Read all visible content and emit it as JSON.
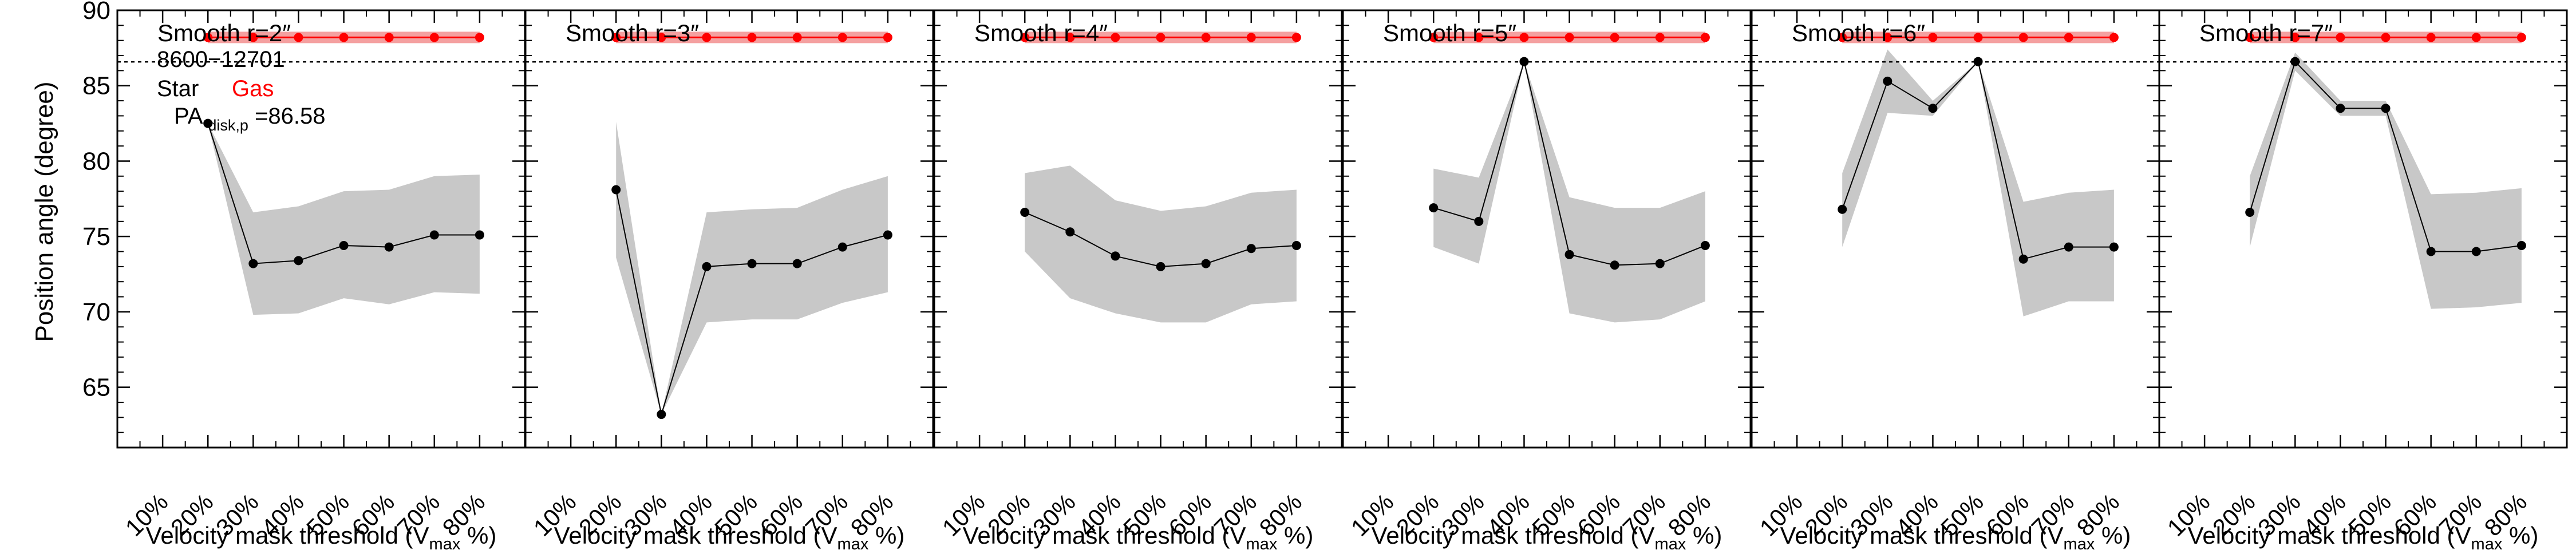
{
  "figure": {
    "ylabel": "Position angle (degree)",
    "xlabel_main": "Velocity mask threshold (V",
    "xlabel_sub": "max",
    "xlabel_end": " %)",
    "galaxy_id": "8600−12701",
    "legend_star": "Star",
    "legend_gas": "Gas",
    "pa_label_main": "PA",
    "pa_label_sub": "disk,p",
    "pa_label_value": "=86.58",
    "reference_pa": 86.58,
    "colors": {
      "star": "#000000",
      "gas": "#ff0000",
      "band": "#c8c8c8",
      "gas_band": "#f4a0a0",
      "reference_line": "#000000"
    }
  },
  "chart_data": [
    {
      "type": "line",
      "title": "Smooth r=2″",
      "xticks": [
        "10%",
        "20%",
        "30%",
        "40%",
        "50%",
        "60%",
        "70%",
        "80%"
      ],
      "x": [
        20,
        30,
        40,
        50,
        60,
        70,
        80
      ],
      "star": [
        82.5,
        73.2,
        73.4,
        74.4,
        74.3,
        75.1,
        75.1
      ],
      "star_low": [
        82.5,
        69.8,
        69.9,
        70.9,
        70.5,
        71.3,
        71.2
      ],
      "star_high": [
        82.5,
        76.6,
        77.0,
        78.0,
        78.1,
        79.0,
        79.1
      ],
      "gas": [
        88.2,
        88.2,
        88.2,
        88.2,
        88.2,
        88.2,
        88.2
      ],
      "ylim": [
        61,
        90
      ],
      "xlim": [
        0,
        90
      ],
      "yticks": [
        65,
        70,
        75,
        80,
        85,
        90
      ]
    },
    {
      "type": "line",
      "title": "Smooth r=3″",
      "xticks": [
        "10%",
        "20%",
        "30%",
        "40%",
        "50%",
        "60%",
        "70%",
        "80%"
      ],
      "x": [
        20,
        30,
        40,
        50,
        60,
        70,
        80
      ],
      "star": [
        78.1,
        63.2,
        73.0,
        73.2,
        73.2,
        74.3,
        75.1
      ],
      "star_low": [
        73.6,
        63.2,
        69.3,
        69.5,
        69.5,
        70.6,
        71.3
      ],
      "star_high": [
        82.6,
        63.2,
        76.6,
        76.8,
        76.9,
        78.1,
        79.0
      ],
      "gas": [
        88.2,
        88.2,
        88.2,
        88.2,
        88.2,
        88.2,
        88.2
      ],
      "ylim": [
        61,
        90
      ],
      "xlim": [
        0,
        90
      ],
      "yticks": [
        65,
        70,
        75,
        80,
        85,
        90
      ]
    },
    {
      "type": "line",
      "title": "Smooth r=4″",
      "xticks": [
        "10%",
        "20%",
        "30%",
        "40%",
        "50%",
        "60%",
        "70%",
        "80%"
      ],
      "x": [
        20,
        30,
        40,
        50,
        60,
        70,
        80
      ],
      "star": [
        76.6,
        75.3,
        73.7,
        73.0,
        73.2,
        74.2,
        74.4
      ],
      "star_low": [
        74.0,
        70.9,
        69.9,
        69.3,
        69.3,
        70.5,
        70.7
      ],
      "star_high": [
        79.2,
        79.7,
        77.4,
        76.7,
        77.0,
        77.9,
        78.1
      ],
      "gas": [
        88.2,
        88.2,
        88.2,
        88.2,
        88.2,
        88.2,
        88.2
      ],
      "ylim": [
        61,
        90
      ],
      "xlim": [
        0,
        90
      ],
      "yticks": [
        65,
        70,
        75,
        80,
        85,
        90
      ]
    },
    {
      "type": "line",
      "title": "Smooth r=5″",
      "xticks": [
        "10%",
        "20%",
        "30%",
        "40%",
        "50%",
        "60%",
        "70%",
        "80%"
      ],
      "x": [
        20,
        30,
        40,
        50,
        60,
        70,
        80
      ],
      "star": [
        76.9,
        76.0,
        86.6,
        73.8,
        73.1,
        73.2,
        74.4
      ],
      "star_low": [
        74.3,
        73.2,
        86.6,
        69.9,
        69.3,
        69.5,
        70.7
      ],
      "star_high": [
        79.5,
        78.9,
        86.6,
        77.6,
        76.9,
        76.9,
        78.0
      ],
      "gas": [
        88.2,
        88.2,
        88.2,
        88.2,
        88.2,
        88.2,
        88.2
      ],
      "ylim": [
        61,
        90
      ],
      "xlim": [
        0,
        90
      ],
      "yticks": [
        65,
        70,
        75,
        80,
        85,
        90
      ]
    },
    {
      "type": "line",
      "title": "Smooth r=6″",
      "xticks": [
        "10%",
        "20%",
        "30%",
        "40%",
        "50%",
        "60%",
        "70%",
        "80%"
      ],
      "x": [
        20,
        30,
        40,
        50,
        60,
        70,
        80
      ],
      "star": [
        76.8,
        85.3,
        83.5,
        86.6,
        73.5,
        74.3,
        74.3
      ],
      "star_low": [
        74.3,
        83.2,
        83.0,
        86.6,
        69.7,
        70.7,
        70.7
      ],
      "star_high": [
        79.2,
        87.4,
        84.0,
        86.6,
        77.3,
        77.9,
        78.1
      ],
      "gas": [
        88.2,
        88.2,
        88.2,
        88.2,
        88.2,
        88.2,
        88.2
      ],
      "ylim": [
        61,
        90
      ],
      "xlim": [
        0,
        90
      ],
      "yticks": [
        65,
        70,
        75,
        80,
        85,
        90
      ]
    },
    {
      "type": "line",
      "title": "Smooth r=7″",
      "xticks": [
        "10%",
        "20%",
        "30%",
        "40%",
        "50%",
        "60%",
        "70%",
        "80%"
      ],
      "x": [
        20,
        30,
        40,
        50,
        60,
        70,
        80
      ],
      "star": [
        76.6,
        86.6,
        83.5,
        83.5,
        74.0,
        74.0,
        74.4
      ],
      "star_low": [
        74.3,
        86.0,
        83.0,
        83.0,
        70.2,
        70.3,
        70.6
      ],
      "star_high": [
        79.0,
        87.2,
        84.0,
        84.0,
        77.8,
        77.9,
        78.2
      ],
      "gas": [
        88.2,
        88.2,
        88.2,
        88.2,
        88.2,
        88.2,
        88.2
      ],
      "ylim": [
        61,
        90
      ],
      "xlim": [
        0,
        90
      ],
      "yticks": [
        65,
        70,
        75,
        80,
        85,
        90
      ]
    }
  ]
}
